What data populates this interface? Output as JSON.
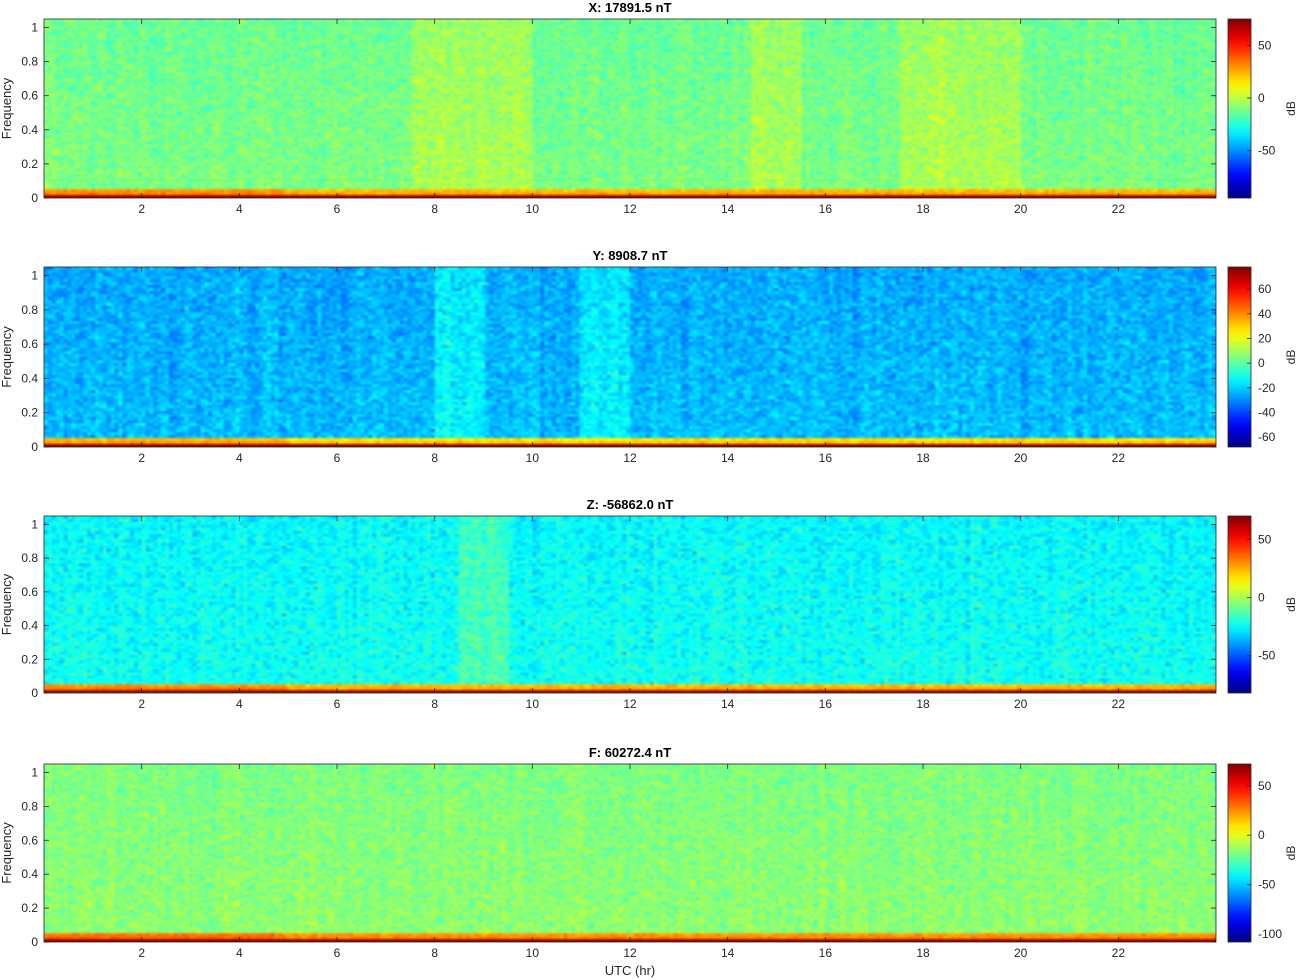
{
  "figure": {
    "xlabel": "UTC (hr)",
    "ylabel": "Frequency",
    "colorbar_label": "dB"
  },
  "chart_data": [
    {
      "type": "heatmap",
      "title": "X: 17891.5 nT",
      "xlabel": "",
      "ylabel": "Frequency",
      "x_range": [
        0,
        24
      ],
      "y_range": [
        0,
        1.05
      ],
      "x_ticks": [
        2,
        4,
        6,
        8,
        10,
        12,
        14,
        16,
        18,
        20,
        22
      ],
      "y_ticks": [
        0,
        0.2,
        0.4,
        0.6,
        0.8,
        1
      ],
      "y_tick_labels": [
        "0",
        "0.2",
        "0.4",
        "0.6",
        "0.8",
        "1"
      ],
      "colorbar": {
        "label": "dB",
        "range": [
          -95,
          75
        ],
        "ticks": [
          50,
          0,
          -50
        ]
      },
      "colormap": "jet",
      "background_level": -10,
      "low_freq_level": 30,
      "dc_level": 70,
      "brighter_bands_hr": [
        [
          7.5,
          10
        ],
        [
          14.5,
          15.5
        ],
        [
          17.5,
          20
        ]
      ]
    },
    {
      "type": "heatmap",
      "title": "Y: 8908.7 nT",
      "xlabel": "",
      "ylabel": "Frequency",
      "x_range": [
        0,
        24
      ],
      "y_range": [
        0,
        1.05
      ],
      "x_ticks": [
        2,
        4,
        6,
        8,
        10,
        12,
        14,
        16,
        18,
        20,
        22
      ],
      "y_ticks": [
        0,
        0.2,
        0.4,
        0.6,
        0.8,
        1
      ],
      "y_tick_labels": [
        "0",
        "0.2",
        "0.4",
        "0.6",
        "0.8",
        "1"
      ],
      "colorbar": {
        "label": "dB",
        "range": [
          -68,
          78
        ],
        "ticks": [
          60,
          40,
          20,
          0,
          -20,
          -40,
          -60
        ]
      },
      "colormap": "jet",
      "background_level": -22,
      "low_freq_level": 35,
      "dc_level": 75,
      "brighter_bands_hr": [
        [
          8,
          9
        ],
        [
          11,
          12
        ]
      ]
    },
    {
      "type": "heatmap",
      "title": "Z: -56862.0 nT",
      "xlabel": "",
      "ylabel": "Frequency",
      "x_range": [
        0,
        24
      ],
      "y_range": [
        0,
        1.05
      ],
      "x_ticks": [
        2,
        4,
        6,
        8,
        10,
        12,
        14,
        16,
        18,
        20,
        22
      ],
      "y_ticks": [
        0,
        0.2,
        0.4,
        0.6,
        0.8,
        1
      ],
      "y_tick_labels": [
        "0",
        "0.2",
        "0.4",
        "0.6",
        "0.8",
        "1"
      ],
      "colorbar": {
        "label": "dB",
        "range": [
          -82,
          70
        ],
        "ticks": [
          50,
          0,
          -50
        ]
      },
      "colormap": "jet",
      "background_level": -22,
      "low_freq_level": 30,
      "dc_level": 65,
      "brighter_bands_hr": [
        [
          8.5,
          9.5
        ]
      ]
    },
    {
      "type": "heatmap",
      "title": "F: 60272.4 nT",
      "xlabel": "UTC (hr)",
      "ylabel": "Frequency",
      "x_range": [
        0,
        24
      ],
      "y_range": [
        0,
        1.05
      ],
      "x_ticks": [
        2,
        4,
        6,
        8,
        10,
        12,
        14,
        16,
        18,
        20,
        22
      ],
      "y_ticks": [
        0,
        0.2,
        0.4,
        0.6,
        0.8,
        1
      ],
      "y_tick_labels": [
        "0",
        "0.2",
        "0.4",
        "0.6",
        "0.8",
        "1"
      ],
      "colorbar": {
        "label": "dB",
        "range": [
          -108,
          72
        ],
        "ticks": [
          50,
          0,
          -50,
          -100
        ]
      },
      "colormap": "jet",
      "background_level": -15,
      "low_freq_level": 30,
      "dc_level": 68,
      "brighter_bands_hr": []
    }
  ]
}
